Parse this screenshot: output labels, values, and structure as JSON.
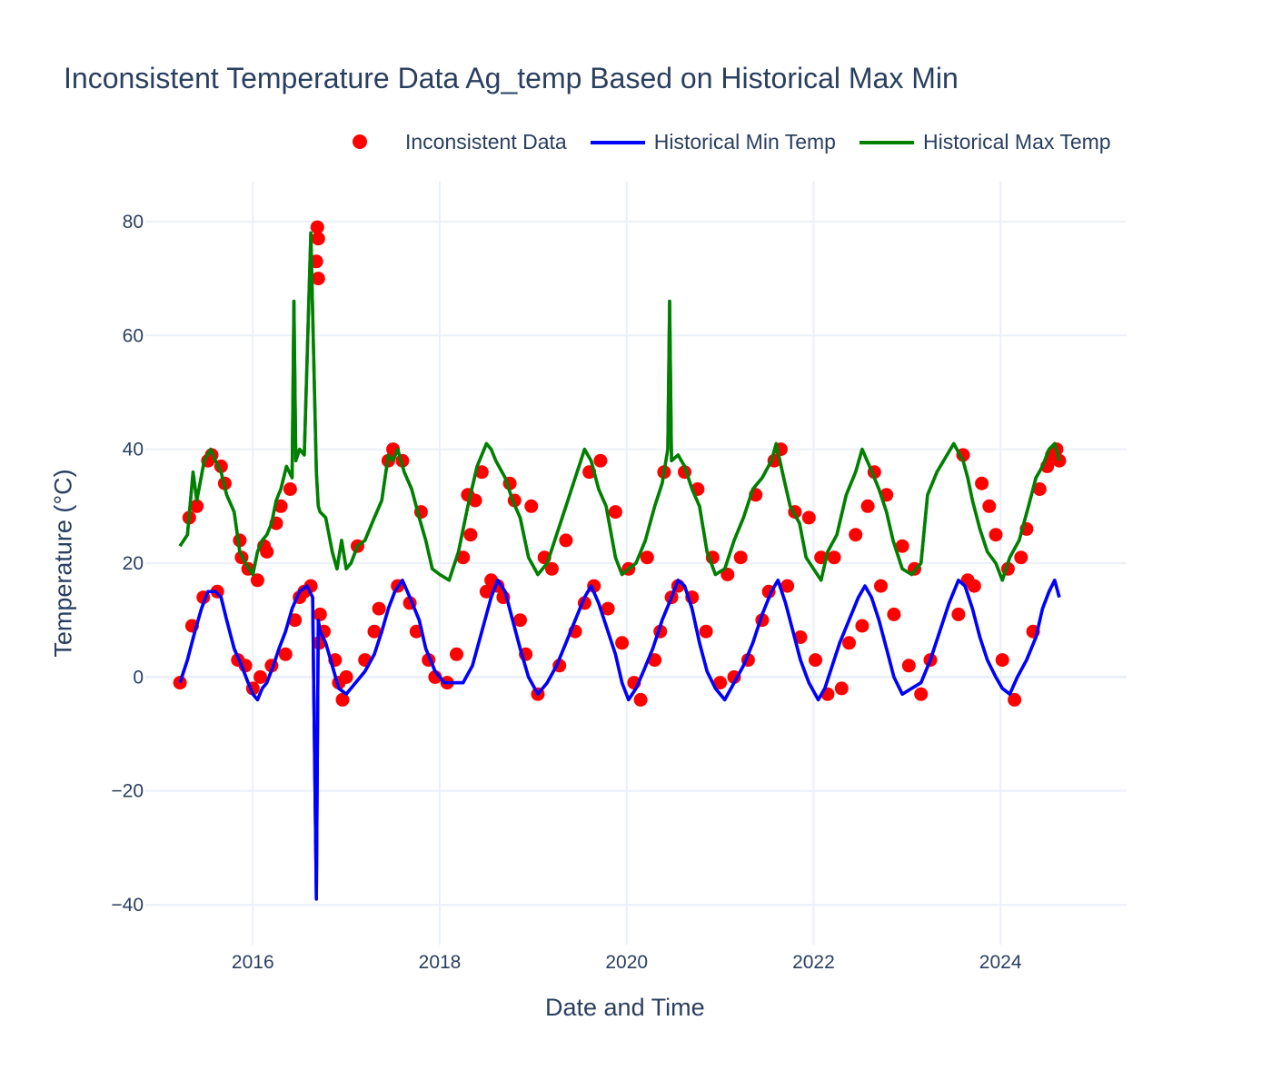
{
  "chart_data": {
    "type": "line",
    "title": "Inconsistent Temperature Data Ag_temp Based on Historical Max Min",
    "xlabel": "Date and Time",
    "ylabel": "Temperature (°C)",
    "x_ticks": [
      "2016",
      "2018",
      "2020",
      "2022",
      "2024"
    ],
    "x_tick_values": [
      2016,
      2018,
      2020,
      2022,
      2024
    ],
    "y_ticks": [
      "80",
      "60",
      "40",
      "20",
      "0",
      "−20",
      "−40"
    ],
    "y_tick_values": [
      80,
      60,
      40,
      20,
      0,
      -20,
      -40
    ],
    "xlim": [
      2014.85,
      2025.35
    ],
    "ylim": [
      -47,
      87
    ],
    "grid": true,
    "legend_position": "top",
    "colors": {
      "inconsistent": "#ff0000",
      "min": "#0000ff",
      "max": "#008000",
      "grid": "#ebf0f8",
      "text": "#2a3f5f"
    },
    "series": [
      {
        "name": "Historical Max Temp",
        "kind": "line",
        "color": "#008000",
        "x": [
          2015.22,
          2015.3,
          2015.36,
          2015.4,
          2015.48,
          2015.55,
          2015.6,
          2015.66,
          2015.72,
          2015.8,
          2015.86,
          2015.92,
          2016.0,
          2016.05,
          2016.1,
          2016.15,
          2016.2,
          2016.25,
          2016.3,
          2016.36,
          2016.42,
          2016.44,
          2016.46,
          2016.5,
          2016.55,
          2016.62,
          2016.68,
          2016.7,
          2016.72,
          2016.78,
          2016.85,
          2016.9,
          2016.95,
          2017.0,
          2017.05,
          2017.12,
          2017.2,
          2017.3,
          2017.38,
          2017.45,
          2017.5,
          2017.55,
          2017.62,
          2017.7,
          2017.78,
          2017.85,
          2017.92,
          2018.0,
          2018.1,
          2018.2,
          2018.3,
          2018.4,
          2018.5,
          2018.55,
          2018.6,
          2018.7,
          2018.78,
          2018.86,
          2018.95,
          2019.05,
          2019.15,
          2019.25,
          2019.35,
          2019.45,
          2019.55,
          2019.62,
          2019.7,
          2019.78,
          2019.88,
          2019.95,
          2020.02,
          2020.1,
          2020.2,
          2020.3,
          2020.38,
          2020.44,
          2020.46,
          2020.48,
          2020.55,
          2020.62,
          2020.7,
          2020.78,
          2020.86,
          2020.95,
          2021.05,
          2021.15,
          2021.25,
          2021.35,
          2021.45,
          2021.55,
          2021.6,
          2021.68,
          2021.75,
          2021.85,
          2021.92,
          2022.0,
          2022.08,
          2022.15,
          2022.25,
          2022.35,
          2022.45,
          2022.52,
          2022.6,
          2022.7,
          2022.78,
          2022.85,
          2022.95,
          2023.05,
          2023.15,
          2023.22,
          2023.32,
          2023.5,
          2023.6,
          2023.65,
          2023.7,
          2023.78,
          2023.86,
          2023.95,
          2024.02,
          2024.1,
          2024.2,
          2024.3,
          2024.38,
          2024.45,
          2024.52,
          2024.58,
          2024.63
        ],
        "y": [
          23,
          25,
          36,
          31,
          38,
          40,
          38,
          36,
          32,
          29,
          22,
          20,
          18,
          22,
          24,
          25,
          27,
          31,
          33,
          37,
          35,
          66,
          38,
          40,
          39,
          78,
          36,
          30,
          29,
          28,
          22,
          19,
          24,
          19,
          20,
          23,
          24,
          28,
          31,
          39,
          38,
          40,
          36,
          33,
          28,
          24,
          19,
          18,
          17,
          22,
          30,
          37,
          41,
          40,
          38,
          35,
          31,
          28,
          21,
          18,
          20,
          25,
          30,
          35,
          40,
          38,
          33,
          30,
          21,
          18,
          19,
          20,
          24,
          30,
          34,
          40,
          66,
          38,
          39,
          37,
          33,
          30,
          22,
          18,
          19,
          24,
          28,
          33,
          35,
          38,
          41,
          35,
          30,
          27,
          21,
          19,
          17,
          22,
          25,
          32,
          36,
          40,
          37,
          33,
          29,
          24,
          19,
          18,
          20,
          32,
          36,
          41,
          38,
          35,
          31,
          26,
          22,
          20,
          17,
          21,
          24,
          30,
          35,
          37,
          40,
          41,
          38
        ]
      },
      {
        "name": "Historical Min Temp",
        "kind": "line",
        "color": "#0000ff",
        "x": [
          2015.22,
          2015.3,
          2015.38,
          2015.45,
          2015.52,
          2015.6,
          2015.66,
          2015.72,
          2015.8,
          2015.88,
          2015.95,
          2016.0,
          2016.05,
          2016.1,
          2016.15,
          2016.22,
          2016.28,
          2016.35,
          2016.42,
          2016.5,
          2016.58,
          2016.64,
          2016.68,
          2016.7,
          2016.72,
          2016.78,
          2016.85,
          2016.92,
          2017.0,
          2017.1,
          2017.2,
          2017.3,
          2017.38,
          2017.45,
          2017.52,
          2017.6,
          2017.68,
          2017.78,
          2017.85,
          2017.95,
          2018.05,
          2018.15,
          2018.25,
          2018.35,
          2018.45,
          2018.55,
          2018.62,
          2018.7,
          2018.78,
          2018.86,
          2018.95,
          2019.05,
          2019.15,
          2019.25,
          2019.35,
          2019.45,
          2019.55,
          2019.62,
          2019.7,
          2019.78,
          2019.88,
          2019.95,
          2020.02,
          2020.1,
          2020.18,
          2020.28,
          2020.38,
          2020.48,
          2020.55,
          2020.62,
          2020.7,
          2020.78,
          2020.86,
          2020.95,
          2021.05,
          2021.15,
          2021.25,
          2021.35,
          2021.45,
          2021.55,
          2021.62,
          2021.7,
          2021.78,
          2021.86,
          2021.95,
          2022.05,
          2022.12,
          2022.2,
          2022.28,
          2022.38,
          2022.48,
          2022.55,
          2022.62,
          2022.7,
          2022.78,
          2022.86,
          2022.95,
          2023.05,
          2023.15,
          2023.25,
          2023.35,
          2023.45,
          2023.55,
          2023.62,
          2023.7,
          2023.78,
          2023.86,
          2023.95,
          2024.02,
          2024.1,
          2024.18,
          2024.28,
          2024.38,
          2024.45,
          2024.52,
          2024.58,
          2024.63
        ],
        "y": [
          -1,
          3,
          8,
          12,
          15,
          15,
          14,
          10,
          5,
          2,
          -1,
          -3,
          -4,
          -2,
          -1,
          2,
          5,
          8,
          12,
          15,
          16,
          14,
          -39,
          10,
          8,
          6,
          2,
          -2,
          -3,
          -1,
          1,
          4,
          8,
          12,
          15,
          17,
          14,
          10,
          5,
          1,
          -1,
          -1,
          -1,
          2,
          8,
          14,
          17,
          15,
          10,
          5,
          0,
          -3,
          -1,
          2,
          6,
          10,
          14,
          16,
          13,
          9,
          4,
          -1,
          -4,
          -2,
          1,
          5,
          10,
          14,
          17,
          16,
          12,
          6,
          1,
          -2,
          -4,
          -1,
          2,
          6,
          11,
          15,
          17,
          13,
          8,
          3,
          -1,
          -4,
          -2,
          2,
          6,
          10,
          14,
          16,
          14,
          10,
          5,
          0,
          -3,
          -2,
          -1,
          3,
          8,
          13,
          17,
          16,
          12,
          7,
          3,
          0,
          -2,
          -3,
          0,
          3,
          7,
          12,
          15,
          17,
          14
        ]
      },
      {
        "name": "Inconsistent Data",
        "kind": "markers",
        "color": "#ff0000",
        "x": [
          2015.22,
          2015.32,
          2015.35,
          2015.4,
          2015.47,
          2015.52,
          2015.56,
          2015.62,
          2015.66,
          2015.7,
          2015.84,
          2015.86,
          2015.88,
          2015.92,
          2015.95,
          2016.0,
          2016.05,
          2016.08,
          2016.12,
          2016.15,
          2016.2,
          2016.25,
          2016.3,
          2016.35,
          2016.4,
          2016.45,
          2016.5,
          2016.55,
          2016.62,
          2016.68,
          2016.69,
          2016.7,
          2016.7,
          2016.71,
          2016.72,
          2016.76,
          2016.88,
          2016.92,
          2016.96,
          2017.0,
          2017.12,
          2017.2,
          2017.3,
          2017.35,
          2017.45,
          2017.5,
          2017.55,
          2017.6,
          2017.68,
          2017.75,
          2017.8,
          2017.88,
          2017.95,
          2018.08,
          2018.18,
          2018.25,
          2018.3,
          2018.33,
          2018.38,
          2018.45,
          2018.5,
          2018.55,
          2018.62,
          2018.68,
          2018.75,
          2018.8,
          2018.86,
          2018.92,
          2018.98,
          2019.05,
          2019.12,
          2019.2,
          2019.28,
          2019.35,
          2019.45,
          2019.55,
          2019.6,
          2019.65,
          2019.72,
          2019.8,
          2019.88,
          2019.95,
          2020.02,
          2020.08,
          2020.15,
          2020.22,
          2020.3,
          2020.36,
          2020.4,
          2020.48,
          2020.55,
          2020.62,
          2020.7,
          2020.76,
          2020.85,
          2020.92,
          2021.0,
          2021.08,
          2021.15,
          2021.22,
          2021.3,
          2021.38,
          2021.45,
          2021.52,
          2021.58,
          2021.65,
          2021.72,
          2021.8,
          2021.86,
          2021.95,
          2022.02,
          2022.08,
          2022.15,
          2022.22,
          2022.3,
          2022.38,
          2022.45,
          2022.52,
          2022.58,
          2022.65,
          2022.72,
          2022.78,
          2022.86,
          2022.95,
          2023.02,
          2023.08,
          2023.15,
          2023.25,
          2023.55,
          2023.6,
          2023.65,
          2023.72,
          2023.8,
          2023.88,
          2023.95,
          2024.02,
          2024.08,
          2024.15,
          2024.22,
          2024.28,
          2024.35,
          2024.42,
          2024.5,
          2024.55,
          2024.6,
          2024.63
        ],
        "y": [
          -1,
          28,
          9,
          30,
          14,
          38,
          39,
          15,
          37,
          34,
          3,
          24,
          21,
          2,
          19,
          -2,
          17,
          0,
          23,
          22,
          2,
          27,
          30,
          4,
          33,
          10,
          14,
          15,
          16,
          73,
          79,
          77,
          70,
          6,
          11,
          8,
          3,
          -1,
          -4,
          0,
          23,
          3,
          8,
          12,
          38,
          40,
          16,
          38,
          13,
          8,
          29,
          3,
          0,
          -1,
          4,
          21,
          32,
          25,
          31,
          36,
          15,
          17,
          16,
          14,
          34,
          31,
          10,
          4,
          30,
          -3,
          21,
          19,
          2,
          24,
          8,
          13,
          36,
          16,
          38,
          12,
          29,
          6,
          19,
          -1,
          -4,
          21,
          3,
          8,
          36,
          14,
          16,
          36,
          14,
          33,
          8,
          21,
          -1,
          18,
          0,
          21,
          3,
          32,
          10,
          15,
          38,
          40,
          16,
          29,
          7,
          28,
          3,
          21,
          -3,
          21,
          -2,
          6,
          25,
          9,
          30,
          36,
          16,
          32,
          11,
          23,
          2,
          19,
          -3,
          3,
          11,
          39,
          17,
          16,
          34,
          30,
          25,
          3,
          19,
          -4,
          21,
          26,
          8,
          33,
          37,
          39,
          40,
          38
        ]
      }
    ]
  }
}
